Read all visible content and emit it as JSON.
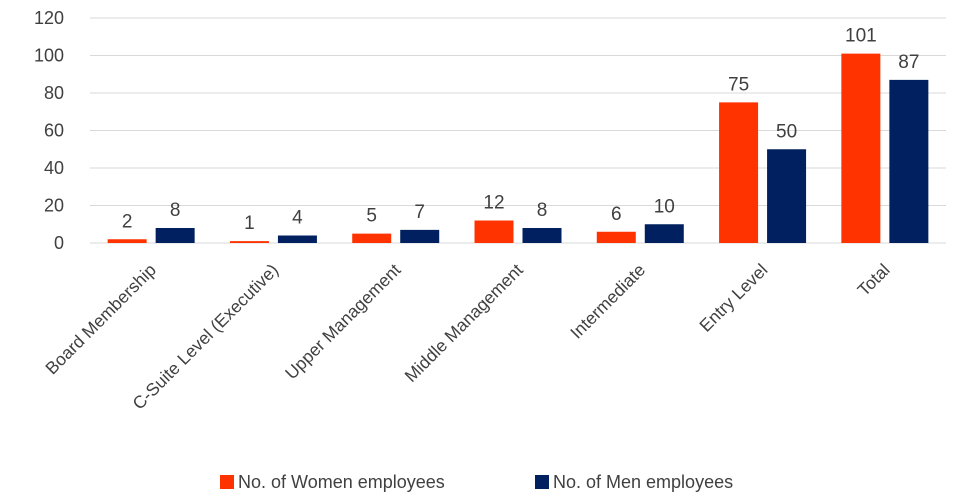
{
  "chart_data": {
    "type": "bar",
    "title": "",
    "xlabel": "",
    "ylabel": "",
    "categories": [
      "Board Membership",
      "C-Suite Level (Executive)",
      "Upper Management",
      "Middle Management",
      "Intermediate",
      "Entry Level",
      "Total"
    ],
    "series": [
      {
        "name": "No. of Women employees",
        "color": "#ff3300",
        "values": [
          2,
          1,
          5,
          12,
          6,
          75,
          101
        ]
      },
      {
        "name": "No. of Men employees",
        "color": "#002060",
        "values": [
          8,
          4,
          7,
          8,
          10,
          50,
          87
        ]
      }
    ],
    "ylim": [
      0,
      120
    ],
    "yticks": [
      0,
      20,
      40,
      60,
      80,
      100,
      120
    ],
    "grid": true,
    "data_labels": true,
    "legend_position": "bottom"
  }
}
